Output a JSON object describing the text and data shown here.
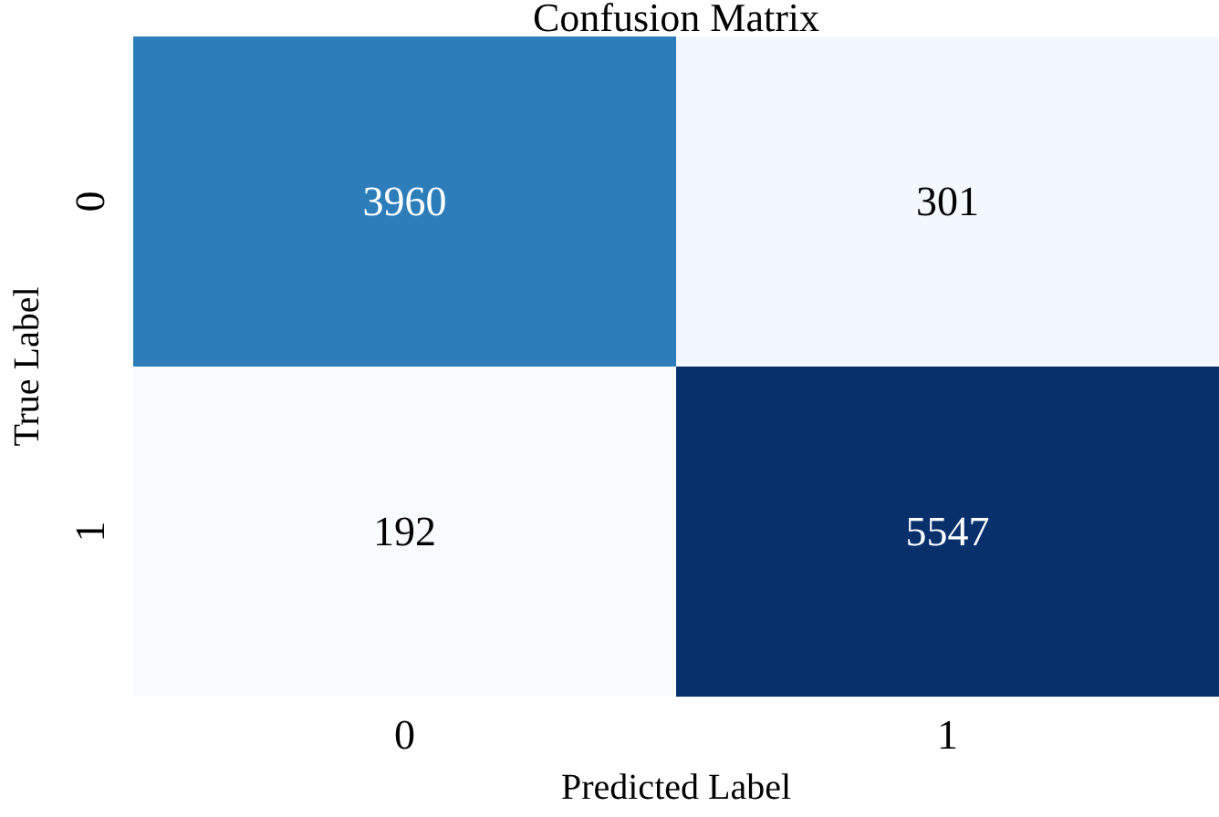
{
  "chart_data": {
    "type": "heatmap",
    "title": "Confusion Matrix",
    "xlabel": "Predicted Label",
    "ylabel": "True Label",
    "categories": [
      "0",
      "1"
    ],
    "y_categories": [
      "0",
      "1"
    ],
    "cells": [
      [
        3960,
        301
      ],
      [
        192,
        5547
      ]
    ],
    "data_labels": true
  }
}
